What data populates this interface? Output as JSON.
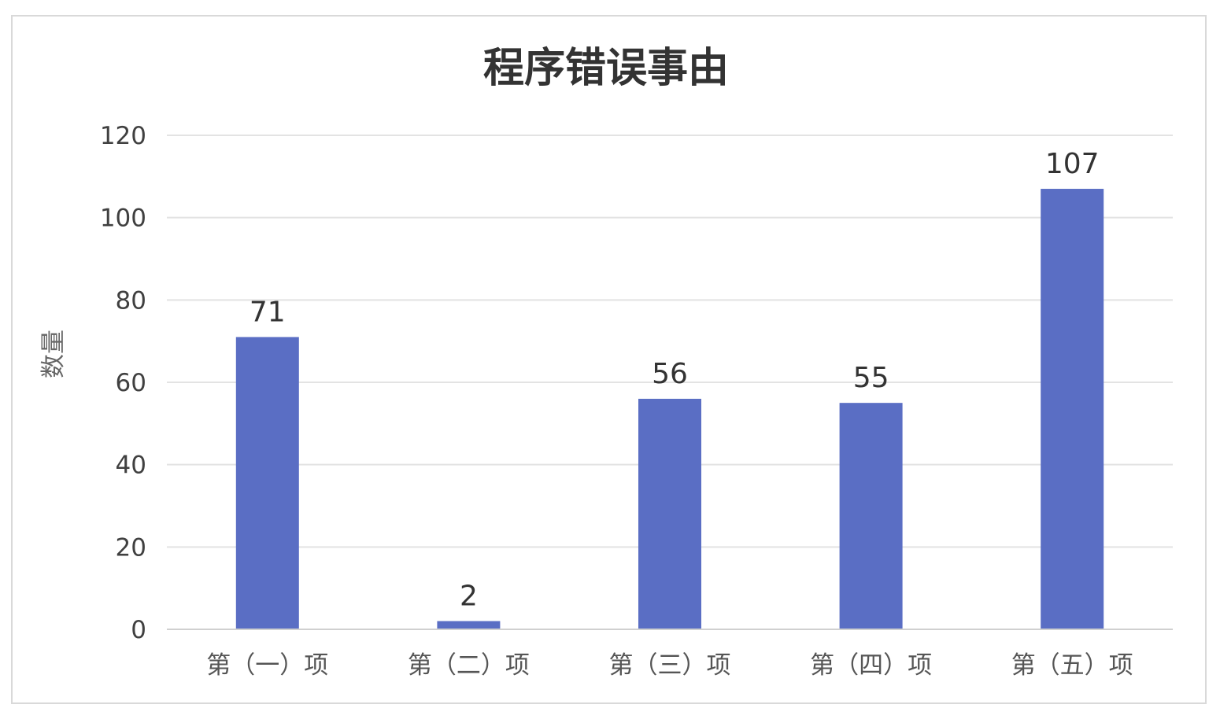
{
  "chart_data": {
    "type": "bar",
    "title": "程序错误事由",
    "ylabel": "数量",
    "xlabel": "",
    "categories": [
      "第（一）项",
      "第（二）项",
      "第（三）项",
      "第（四）项",
      "第（五）项"
    ],
    "values": [
      71,
      2,
      56,
      55,
      107
    ],
    "ylim": [
      0,
      120
    ],
    "yticks": [
      0,
      20,
      40,
      60,
      80,
      100,
      120
    ],
    "grid": true,
    "data_labels": true,
    "legend": "none",
    "colors": {
      "bar": "#5a6ec4",
      "grid": "#e3e3e3",
      "axis": "#d0d0d0"
    }
  }
}
